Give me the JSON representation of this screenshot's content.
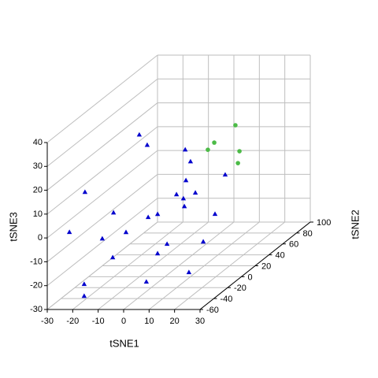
{
  "chart_data": {
    "type": "scatter3d",
    "xlabel": "tSNE1",
    "ylabel": "tSNE2",
    "zlabel": "tSNE3",
    "xlim": [
      -30,
      30
    ],
    "ylim": [
      -60,
      100
    ],
    "zlim": [
      -30,
      40
    ],
    "xticks": [
      -30,
      -20,
      -10,
      0,
      10,
      20,
      30
    ],
    "yticks": [
      -60,
      -40,
      -20,
      0,
      20,
      40,
      60,
      80,
      100
    ],
    "zticks": [
      -30,
      -20,
      -10,
      0,
      10,
      20,
      30,
      40
    ],
    "grid": true,
    "grid_color": "#bebebe",
    "series": [
      {
        "color": "#0000cd",
        "marker": "triangle",
        "x": [
          -15.5,
          -15.1,
          -8.3,
          -0.8,
          -5.3,
          2.0,
          -6.3,
          -1.6,
          -9.0,
          -0.5,
          -5.6,
          -6.6,
          0.7,
          -20.6,
          -14.8,
          -12.6,
          -16.5,
          -24.0,
          -12.4,
          -2.9,
          -4.6,
          1.5,
          9.4,
          -1.9,
          -18.2,
          -15.5
        ],
        "y": [
          20,
          30,
          60,
          40,
          50,
          80,
          40,
          50,
          60,
          30,
          10,
          0,
          70,
          -40,
          -20,
          -10,
          -30,
          -50,
          -30,
          0,
          20,
          50,
          0,
          -20,
          -50,
          -60
        ],
        "z": [
          24.9,
          18.3,
          9.5,
          9.1,
          -1.1,
          -5.6,
          -4.7,
          -6.3,
          -11.0,
          -7.4,
          -6.1,
          -5.1,
          -19.8,
          14.6,
          1.4,
          -9.1,
          -7.2,
          0.1,
          -15.1,
          -20.3,
          -20.9,
          -26.8,
          -28.2,
          -27.6,
          -21.7,
          -24.4
        ]
      },
      {
        "color": "#4cbb47",
        "marker": "circle",
        "x": [
          3.3,
          -2.3,
          -2.1,
          4.9,
          4.3
        ],
        "y": [
          90,
          80,
          70,
          90,
          90
        ],
        "z": [
          12.9,
          7.9,
          7.2,
          2.0,
          -3.0
        ]
      }
    ]
  }
}
